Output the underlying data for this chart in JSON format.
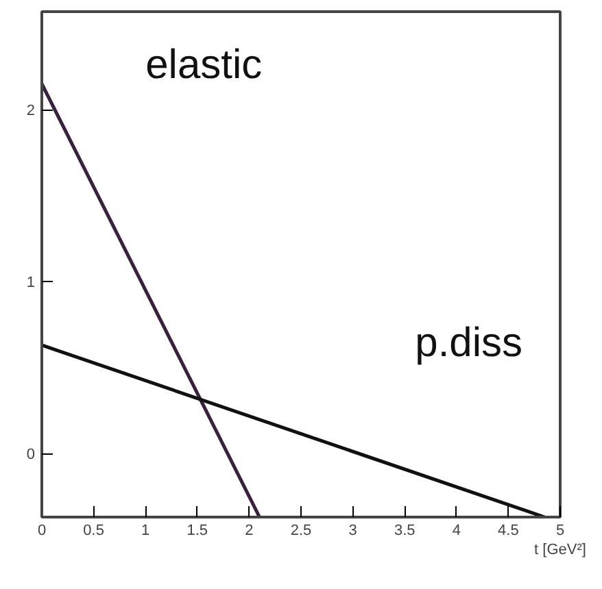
{
  "chart_data": {
    "type": "line",
    "xlabel": "t [GeV²]",
    "xlim": [
      0,
      5
    ],
    "ylim": [
      -0.37,
      2.57
    ],
    "xticks": [
      0,
      0.5,
      1,
      1.5,
      2,
      2.5,
      3,
      3.5,
      4,
      4.5,
      5
    ],
    "yticks": [
      0,
      1,
      2
    ],
    "grid": false,
    "series": [
      {
        "name": "elastic",
        "color": "#3a1f3f",
        "x": [
          0,
          2.1
        ],
        "values": [
          2.15,
          -0.37
        ]
      },
      {
        "name": "p.diss",
        "color": "#111111",
        "x": [
          0,
          4.85
        ],
        "values": [
          0.63,
          -0.37
        ]
      }
    ]
  }
}
